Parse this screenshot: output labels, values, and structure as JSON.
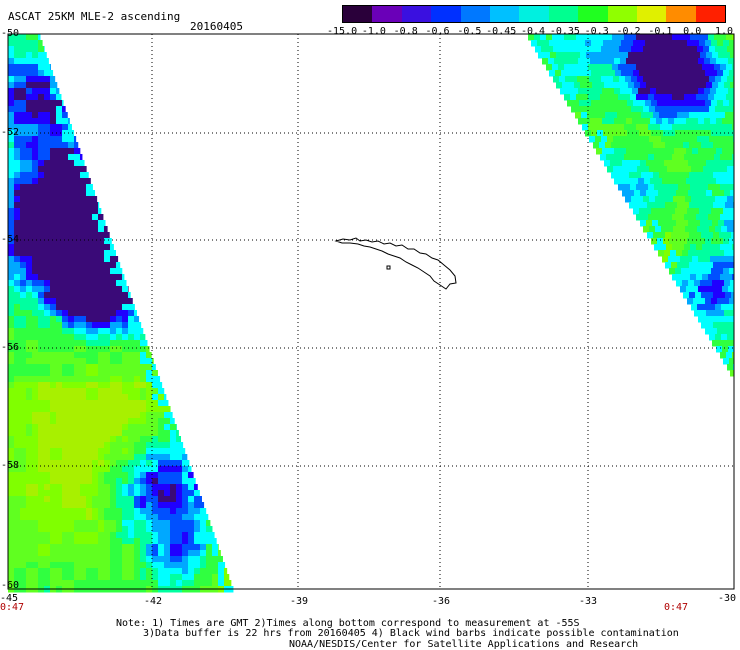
{
  "header": {
    "title": "ASCAT 25KM MLE-2 ascending",
    "date": "20160405"
  },
  "colorbar": {
    "labels": [
      "-15.0",
      "-1.0",
      "-0.8",
      "-0.6",
      "-0.5",
      "-0.45",
      "-0.4",
      "-0.35",
      "-0.3",
      "-0.2",
      "-0.1",
      "0.0",
      "1.0"
    ],
    "colors": [
      "#2a003a",
      "#6a00b8",
      "#3a10e0",
      "#0030ff",
      "#0078ff",
      "#00c0ff",
      "#00f0e0",
      "#00ff90",
      "#20ff20",
      "#90ff00",
      "#e0f000",
      "#ff8c00",
      "#ff2000"
    ]
  },
  "map": {
    "lat_labels": [
      "-50",
      "-52",
      "-54",
      "-56",
      "-58",
      "-60"
    ],
    "lon_labels": [
      "-45",
      "-42",
      "-39",
      "-36",
      "-33",
      "-30"
    ],
    "time_left": "0:47",
    "time_right": "0:47"
  },
  "footer": {
    "line1": "Note: 1) Times are GMT 2)Times along bottom correspond to measurement at -55S",
    "line2": "3)Data buffer is 22 hrs from 20160405 4) Black wind barbs indicate possible contamination",
    "line3": "NOAA/NESDIS/Center for Satellite Applications and Research"
  }
}
